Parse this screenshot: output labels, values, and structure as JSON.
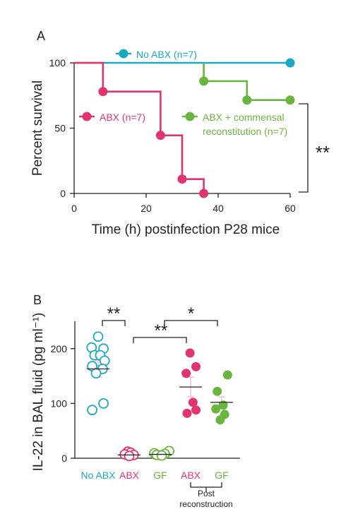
{
  "colors": {
    "no_abx": "#1aa9c3",
    "abx": "#e2356f",
    "recon": "#6ab53f",
    "axis": "#222222",
    "ci": "#f5bcd0"
  },
  "chart_data": [
    {
      "panel": "A",
      "type": "line",
      "step": true,
      "xlabel": "Time (h) postinfection P28 mice",
      "ylabel": "Percent survival",
      "xlim": [
        0,
        60
      ],
      "ylim": [
        0,
        100
      ],
      "xticks": [
        "0",
        "20",
        "40",
        "60"
      ],
      "yticks": [
        "0",
        "50",
        "100"
      ],
      "series": [
        {
          "name": "No ABX (n=7)",
          "color_key": "no_abx",
          "line": [
            [
              0,
              100
            ],
            [
              60,
              100
            ]
          ],
          "markers": [
            [
              60,
              100
            ]
          ]
        },
        {
          "name": "ABX (n=7)",
          "color_key": "abx",
          "line": [
            [
              0,
              100
            ],
            [
              8,
              100
            ],
            [
              8,
              78
            ],
            [
              24,
              78
            ],
            [
              24,
              44.5
            ],
            [
              30,
              44.5
            ],
            [
              30,
              11
            ],
            [
              36,
              11
            ],
            [
              36,
              0
            ]
          ],
          "markers": [
            [
              8,
              78
            ],
            [
              24,
              44.5
            ],
            [
              30,
              11
            ],
            [
              36,
              0
            ]
          ]
        },
        {
          "name_lines": [
            "ABX + commensal",
            "reconstitution (n=7)"
          ],
          "color_key": "recon",
          "line": [
            [
              36,
              100
            ],
            [
              36,
              86
            ],
            [
              48,
              86
            ],
            [
              48,
              71.5
            ],
            [
              60,
              71.5
            ]
          ],
          "markers": [
            [
              36,
              86
            ],
            [
              48,
              71.5
            ],
            [
              60,
              71.5
            ]
          ]
        }
      ],
      "significance": "**"
    },
    {
      "panel": "B",
      "type": "scatter",
      "ylabel": "IL-22 in BAL fluid (pg ml⁻¹)",
      "ylim": [
        0,
        250
      ],
      "yticks": [
        "0",
        "100",
        "200"
      ],
      "bracket_label": [
        "Post",
        "reconstruction"
      ],
      "groups": [
        {
          "label": "No ABX",
          "color_key": "no_abx",
          "filled": false,
          "mean": 163,
          "sem": 15,
          "points": [
            [
              0,
              222
            ],
            [
              -0.22,
              202
            ],
            [
              0.18,
              200
            ],
            [
              -0.12,
              188
            ],
            [
              0.07,
              188
            ],
            [
              0.22,
              178
            ],
            [
              -0.2,
              168
            ],
            [
              0.15,
              163
            ],
            [
              -0.07,
              155
            ],
            [
              0.18,
              100
            ],
            [
              -0.2,
              88
            ]
          ]
        },
        {
          "label": "ABX",
          "color_key": "abx",
          "filled": false,
          "mean": 6,
          "sem": 2,
          "points": [
            [
              -0.05,
              12
            ],
            [
              0.05,
              10
            ],
            [
              -0.15,
              7
            ],
            [
              0.15,
              6
            ],
            [
              0,
              4
            ]
          ]
        },
        {
          "label": "GF",
          "color_key": "recon",
          "filled": false,
          "mean": 7,
          "sem": 2,
          "points": [
            [
              0.3,
              13
            ],
            [
              -0.2,
              9
            ],
            [
              0.15,
              8
            ],
            [
              -0.12,
              6
            ],
            [
              0.05,
              5
            ]
          ]
        },
        {
          "label": "ABX",
          "color_key": "abx",
          "filled": true,
          "mean": 130,
          "sem": 18,
          "points": [
            [
              -0.02,
              192
            ],
            [
              0.18,
              167
            ],
            [
              -0.15,
              155
            ],
            [
              0.08,
              102
            ],
            [
              0.18,
              88
            ],
            [
              -0.12,
              82
            ]
          ]
        },
        {
          "label": "GF",
          "color_key": "recon",
          "filled": true,
          "mean": 102,
          "sem": 10,
          "points": [
            [
              0.2,
              152
            ],
            [
              -0.15,
              122
            ],
            [
              0.05,
              97
            ],
            [
              -0.2,
              90
            ],
            [
              0.1,
              80
            ],
            [
              -0.05,
              70
            ]
          ]
        }
      ],
      "comparisons": [
        {
          "from": 0,
          "to": 1,
          "label": "**"
        },
        {
          "from": 1,
          "to": 3,
          "label": "**"
        },
        {
          "from": 2,
          "to": 4,
          "label": "*"
        }
      ]
    }
  ]
}
